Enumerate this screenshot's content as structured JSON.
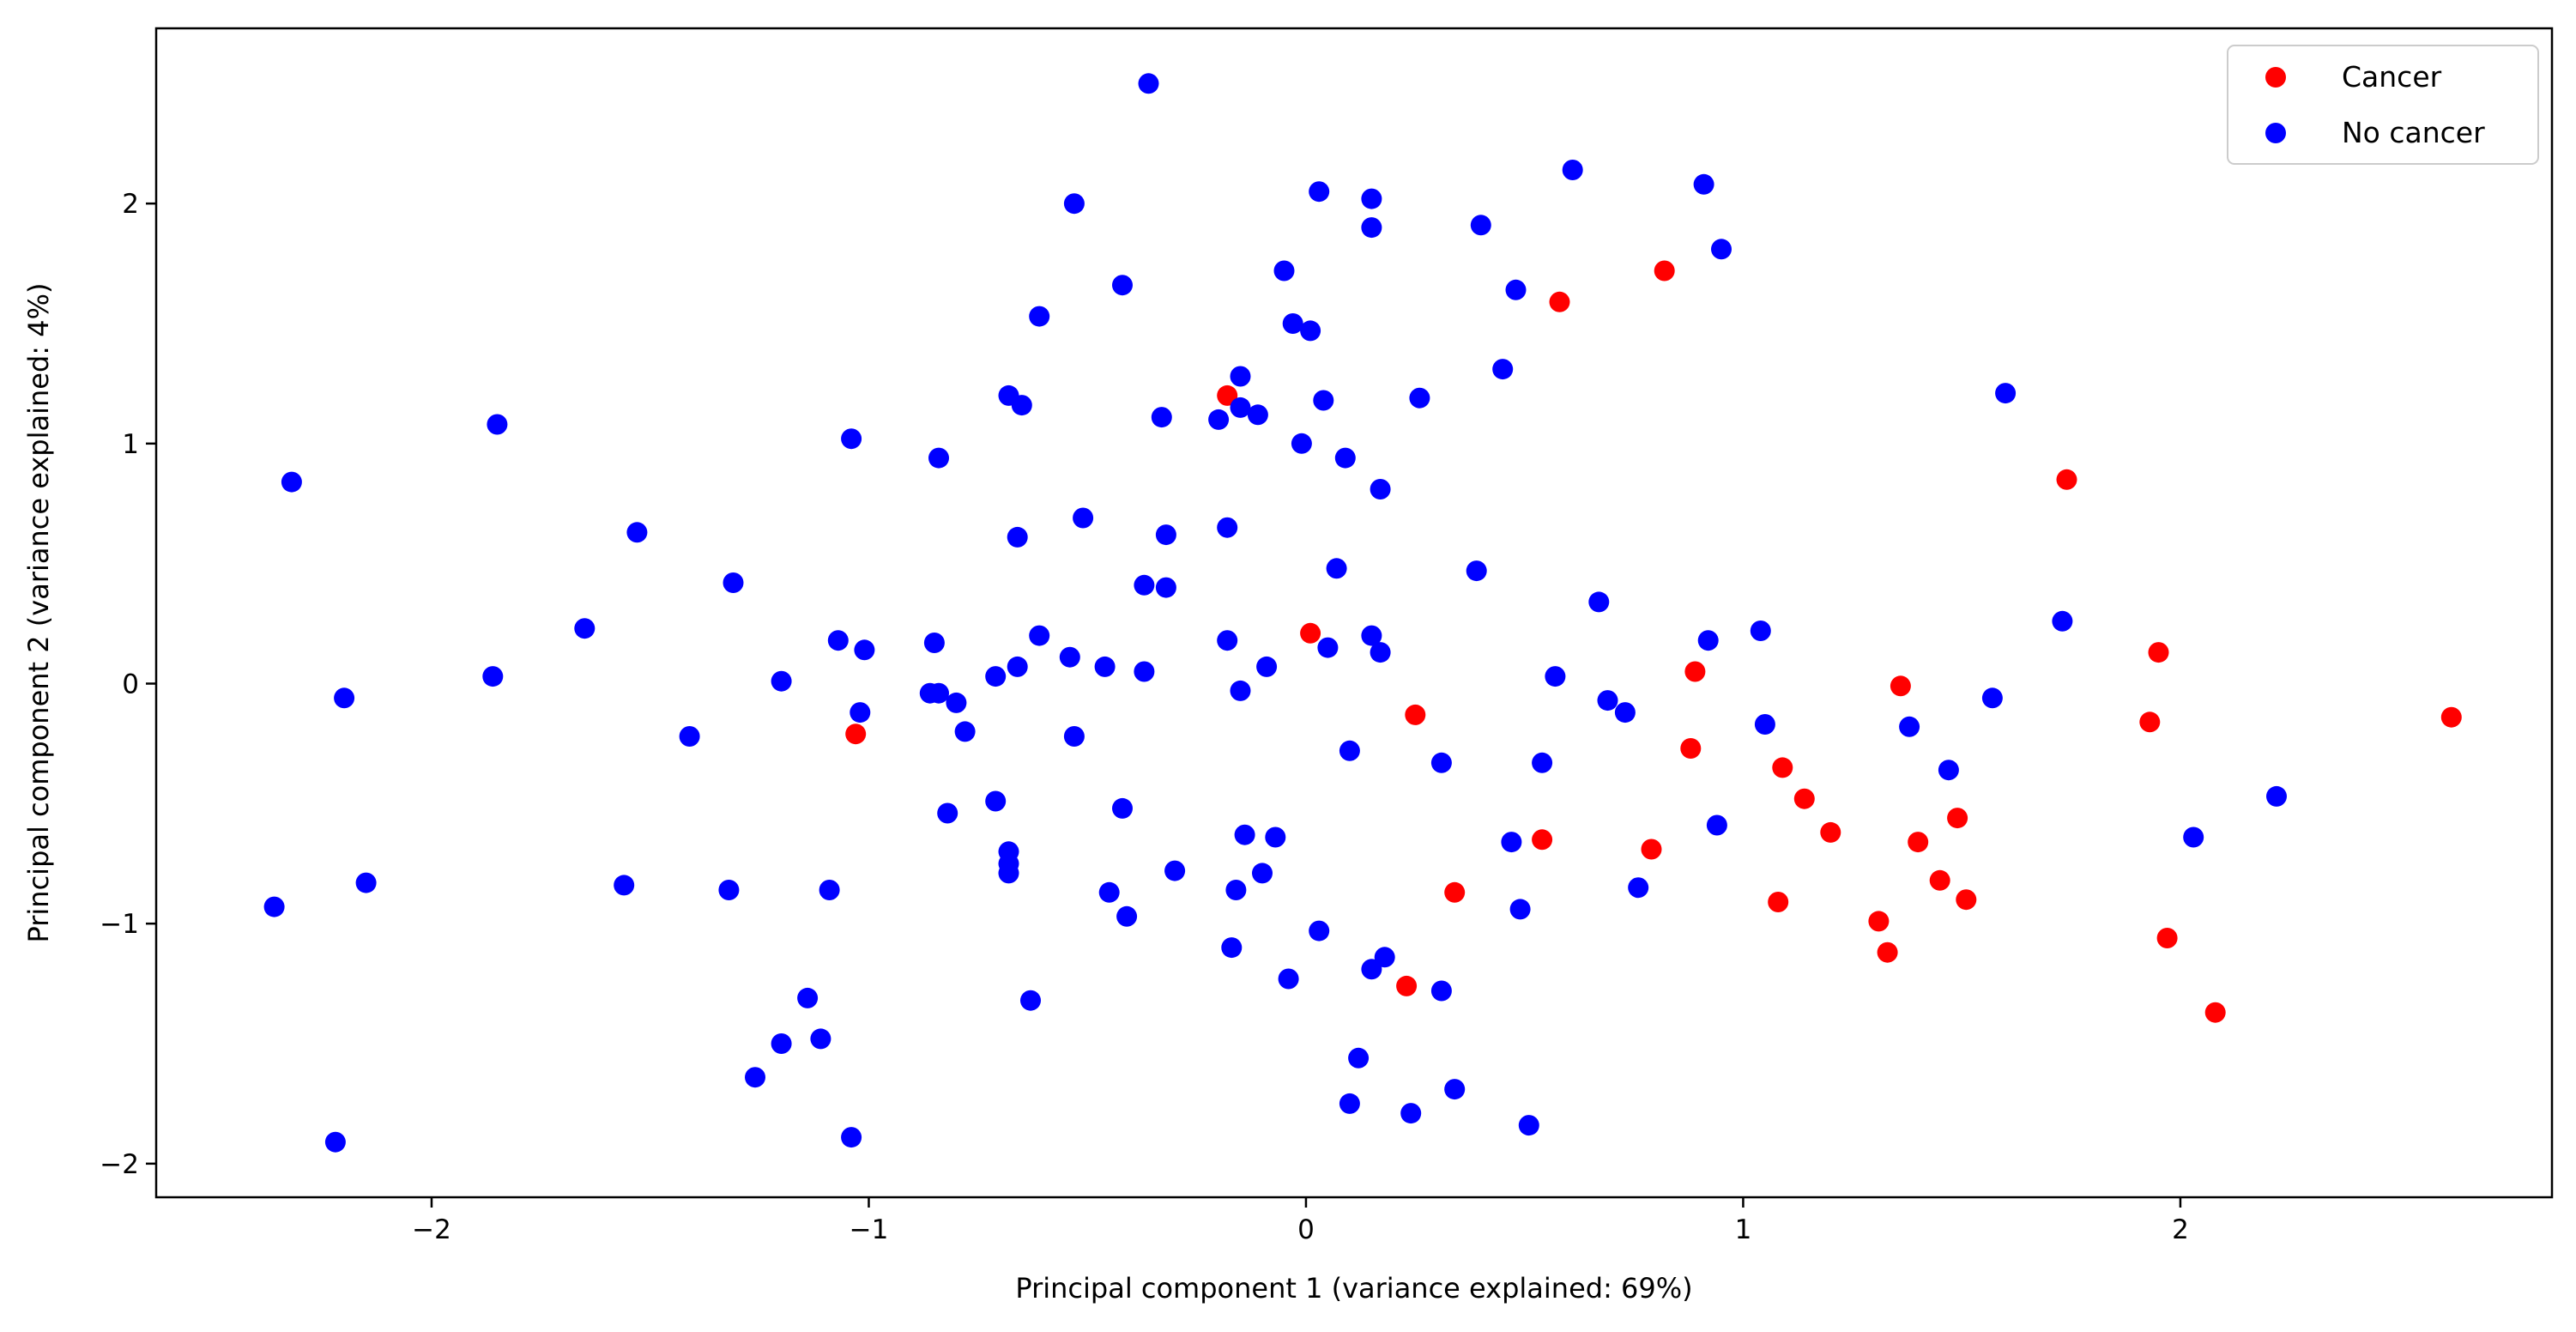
{
  "colors": {
    "cancer": "#ff0000",
    "no_cancer": "#0000ff",
    "axes": "#000000",
    "background": "#ffffff"
  },
  "chart_data": {
    "type": "scatter",
    "title": "",
    "xlabel": "Principal component 1 (variance explained: 69%)",
    "ylabel": "Principal component 2 (variance explained: 4%)",
    "xlim": [
      -2.63,
      2.85
    ],
    "ylim": [
      -2.14,
      2.73
    ],
    "xticks": [
      -2,
      -1,
      0,
      1,
      2
    ],
    "yticks": [
      -2,
      -1,
      0,
      1,
      2
    ],
    "x_tick_labels": [
      "−2",
      "−1",
      "0",
      "1",
      "2"
    ],
    "y_tick_labels": [
      "−2",
      "−1",
      "0",
      "1",
      "2"
    ],
    "grid": false,
    "legend_position": "top-right",
    "series": [
      {
        "name": "Cancer",
        "color": "#ff0000",
        "points": [
          [
            0.58,
            1.59
          ],
          [
            0.82,
            1.72
          ],
          [
            -0.18,
            1.2
          ],
          [
            0.01,
            0.21
          ],
          [
            -1.03,
            -0.21
          ],
          [
            0.25,
            -0.13
          ],
          [
            0.89,
            0.05
          ],
          [
            0.88,
            -0.27
          ],
          [
            0.54,
            -0.65
          ],
          [
            0.79,
            -0.69
          ],
          [
            0.34,
            -0.87
          ],
          [
            0.23,
            -1.26
          ],
          [
            1.09,
            -0.35
          ],
          [
            1.14,
            -0.48
          ],
          [
            1.2,
            -0.62
          ],
          [
            1.08,
            -0.91
          ],
          [
            1.31,
            -0.99
          ],
          [
            1.33,
            -1.12
          ],
          [
            1.36,
            -0.01
          ],
          [
            1.4,
            -0.66
          ],
          [
            1.45,
            -0.82
          ],
          [
            1.49,
            -0.56
          ],
          [
            1.51,
            -0.9
          ],
          [
            1.74,
            0.85
          ],
          [
            1.95,
            0.13
          ],
          [
            1.93,
            -0.16
          ],
          [
            1.97,
            -1.06
          ],
          [
            2.08,
            -1.37
          ],
          [
            2.62,
            -0.14
          ]
        ]
      },
      {
        "name": "No cancer",
        "color": "#0000ff",
        "points": [
          [
            -0.36,
            2.5
          ],
          [
            -0.53,
            2.0
          ],
          [
            0.03,
            2.05
          ],
          [
            0.15,
            2.02
          ],
          [
            0.15,
            1.9
          ],
          [
            0.4,
            1.91
          ],
          [
            0.61,
            2.14
          ],
          [
            0.91,
            2.08
          ],
          [
            0.95,
            1.81
          ],
          [
            -0.42,
            1.66
          ],
          [
            -0.61,
            1.53
          ],
          [
            -0.05,
            1.72
          ],
          [
            -0.03,
            1.5
          ],
          [
            0.01,
            1.47
          ],
          [
            0.48,
            1.64
          ],
          [
            0.45,
            1.31
          ],
          [
            -0.15,
            1.28
          ],
          [
            -0.68,
            1.2
          ],
          [
            -0.65,
            1.16
          ],
          [
            -0.33,
            1.11
          ],
          [
            -0.2,
            1.1
          ],
          [
            -0.15,
            1.15
          ],
          [
            -0.11,
            1.12
          ],
          [
            0.04,
            1.18
          ],
          [
            0.26,
            1.19
          ],
          [
            -0.01,
            1.0
          ],
          [
            0.09,
            0.94
          ],
          [
            0.17,
            0.81
          ],
          [
            1.6,
            1.21
          ],
          [
            -2.32,
            0.84
          ],
          [
            -1.85,
            1.08
          ],
          [
            -1.04,
            1.02
          ],
          [
            -0.84,
            0.94
          ],
          [
            -1.53,
            0.63
          ],
          [
            -0.66,
            0.61
          ],
          [
            -0.51,
            0.69
          ],
          [
            -0.32,
            0.62
          ],
          [
            -0.18,
            0.65
          ],
          [
            -1.31,
            0.42
          ],
          [
            -0.37,
            0.41
          ],
          [
            -0.32,
            0.4
          ],
          [
            0.07,
            0.48
          ],
          [
            0.39,
            0.47
          ],
          [
            0.67,
            0.34
          ],
          [
            1.73,
            0.26
          ],
          [
            -1.65,
            0.23
          ],
          [
            -1.07,
            0.18
          ],
          [
            -1.01,
            0.14
          ],
          [
            -0.85,
            0.17
          ],
          [
            -0.61,
            0.2
          ],
          [
            -0.54,
            0.11
          ],
          [
            -0.46,
            0.07
          ],
          [
            -0.37,
            0.05
          ],
          [
            -0.18,
            0.18
          ],
          [
            -0.09,
            0.07
          ],
          [
            0.05,
            0.15
          ],
          [
            0.15,
            0.2
          ],
          [
            0.17,
            0.13
          ],
          [
            0.57,
            0.03
          ],
          [
            0.92,
            0.18
          ],
          [
            1.04,
            0.22
          ],
          [
            -1.86,
            0.03
          ],
          [
            -1.2,
            0.01
          ],
          [
            -0.71,
            0.03
          ],
          [
            -0.66,
            0.07
          ],
          [
            -2.2,
            -0.06
          ],
          [
            -1.41,
            -0.22
          ],
          [
            -1.02,
            -0.12
          ],
          [
            -0.86,
            -0.04
          ],
          [
            -0.84,
            -0.04
          ],
          [
            -0.8,
            -0.08
          ],
          [
            -0.78,
            -0.2
          ],
          [
            -0.53,
            -0.22
          ],
          [
            -0.15,
            -0.03
          ],
          [
            0.69,
            -0.07
          ],
          [
            0.73,
            -0.12
          ],
          [
            1.05,
            -0.17
          ],
          [
            1.38,
            -0.18
          ],
          [
            1.57,
            -0.06
          ],
          [
            0.1,
            -0.28
          ],
          [
            0.31,
            -0.33
          ],
          [
            0.54,
            -0.33
          ],
          [
            1.47,
            -0.36
          ],
          [
            -0.82,
            -0.54
          ],
          [
            -0.71,
            -0.49
          ],
          [
            -0.42,
            -0.52
          ],
          [
            -0.68,
            -0.7
          ],
          [
            -0.68,
            -0.75
          ],
          [
            -0.68,
            -0.79
          ],
          [
            -0.3,
            -0.78
          ],
          [
            -0.14,
            -0.63
          ],
          [
            -0.07,
            -0.64
          ],
          [
            -0.1,
            -0.79
          ],
          [
            0.47,
            -0.66
          ],
          [
            0.94,
            -0.59
          ],
          [
            2.22,
            -0.47
          ],
          [
            2.03,
            -0.64
          ],
          [
            -2.15,
            -0.83
          ],
          [
            -2.36,
            -0.93
          ],
          [
            -1.56,
            -0.84
          ],
          [
            -1.32,
            -0.86
          ],
          [
            -1.09,
            -0.86
          ],
          [
            -0.45,
            -0.87
          ],
          [
            -0.41,
            -0.97
          ],
          [
            -0.16,
            -0.86
          ],
          [
            0.49,
            -0.94
          ],
          [
            0.76,
            -0.85
          ],
          [
            -0.17,
            -1.1
          ],
          [
            0.03,
            -1.03
          ],
          [
            -0.04,
            -1.23
          ],
          [
            0.15,
            -1.19
          ],
          [
            0.18,
            -1.14
          ],
          [
            0.31,
            -1.28
          ],
          [
            -0.63,
            -1.32
          ],
          [
            -1.14,
            -1.31
          ],
          [
            -1.2,
            -1.5
          ],
          [
            -1.11,
            -1.48
          ],
          [
            -1.26,
            -1.64
          ],
          [
            0.12,
            -1.56
          ],
          [
            0.34,
            -1.69
          ],
          [
            0.1,
            -1.75
          ],
          [
            0.24,
            -1.79
          ],
          [
            0.51,
            -1.84
          ],
          [
            -1.04,
            -1.89
          ],
          [
            -2.22,
            -1.91
          ]
        ]
      }
    ]
  }
}
